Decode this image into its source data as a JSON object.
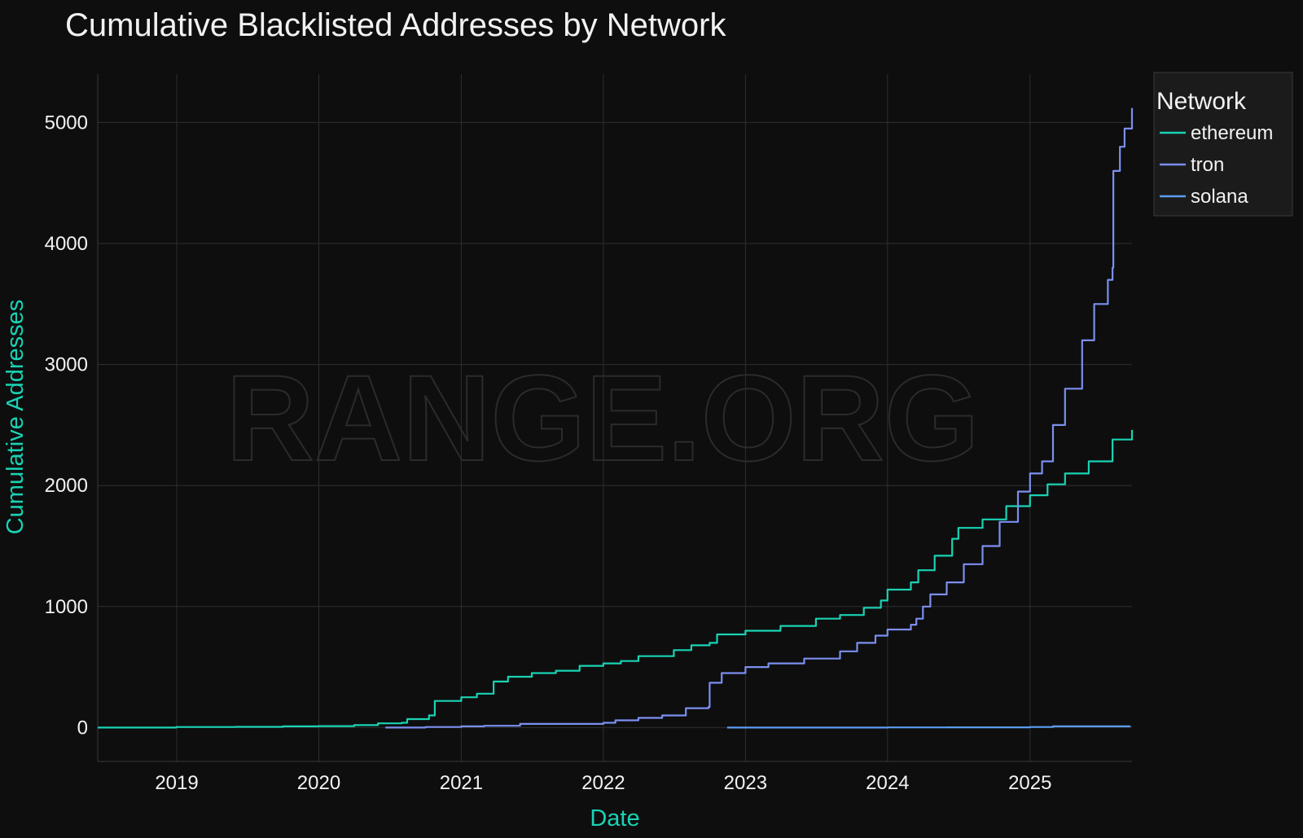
{
  "chart_data": {
    "type": "line",
    "title": "Cumulative Blacklisted Addresses by Network",
    "xlabel": "Date",
    "ylabel": "Cumulative Addresses",
    "watermark": "RANGE.ORG",
    "x_range": [
      "2018-06-12",
      "2025-09-20"
    ],
    "y_range": [
      -280,
      5400
    ],
    "x_ticks": [
      "2019",
      "2020",
      "2021",
      "2022",
      "2023",
      "2024",
      "2025"
    ],
    "y_ticks": [
      0,
      1000,
      2000,
      3000,
      4000,
      5000
    ],
    "grid": true,
    "legend": {
      "title": "Network",
      "placement": "top-right outside"
    },
    "colors": {
      "background": "#0e0e0e",
      "axis_title": "#19d3b4"
    },
    "series": [
      {
        "name": "ethereum",
        "color": "#19d3b4",
        "step": true,
        "points": [
          [
            "2018-06-12",
            0
          ],
          [
            "2018-12-01",
            0
          ],
          [
            "2018-12-31",
            5
          ],
          [
            "2019-06-01",
            6
          ],
          [
            "2019-10-01",
            10
          ],
          [
            "2020-01-01",
            12
          ],
          [
            "2020-04-01",
            20
          ],
          [
            "2020-06-01",
            35
          ],
          [
            "2020-08-01",
            40
          ],
          [
            "2020-08-15",
            70
          ],
          [
            "2020-10-10",
            100
          ],
          [
            "2020-10-25",
            220
          ],
          [
            "2021-01-01",
            250
          ],
          [
            "2021-02-10",
            280
          ],
          [
            "2021-03-25",
            380
          ],
          [
            "2021-05-01",
            420
          ],
          [
            "2021-07-01",
            450
          ],
          [
            "2021-09-01",
            470
          ],
          [
            "2021-11-01",
            510
          ],
          [
            "2022-01-01",
            530
          ],
          [
            "2022-02-15",
            550
          ],
          [
            "2022-04-01",
            590
          ],
          [
            "2022-07-01",
            640
          ],
          [
            "2022-08-15",
            680
          ],
          [
            "2022-10-01",
            700
          ],
          [
            "2022-10-20",
            770
          ],
          [
            "2023-01-01",
            800
          ],
          [
            "2023-04-01",
            840
          ],
          [
            "2023-07-01",
            900
          ],
          [
            "2023-09-01",
            930
          ],
          [
            "2023-11-01",
            990
          ],
          [
            "2023-12-15",
            1050
          ],
          [
            "2024-01-01",
            1140
          ],
          [
            "2024-03-01",
            1200
          ],
          [
            "2024-03-20",
            1300
          ],
          [
            "2024-05-01",
            1420
          ],
          [
            "2024-06-15",
            1560
          ],
          [
            "2024-07-01",
            1650
          ],
          [
            "2024-09-01",
            1720
          ],
          [
            "2024-11-01",
            1830
          ],
          [
            "2025-01-01",
            1920
          ],
          [
            "2025-02-15",
            2010
          ],
          [
            "2025-04-01",
            2100
          ],
          [
            "2025-06-01",
            2200
          ],
          [
            "2025-08-01",
            2380
          ],
          [
            "2025-09-20",
            2460
          ]
        ]
      },
      {
        "name": "tron",
        "color": "#7b8ff0",
        "step": true,
        "points": [
          [
            "2020-06-20",
            0
          ],
          [
            "2020-10-01",
            5
          ],
          [
            "2021-01-01",
            10
          ],
          [
            "2021-03-01",
            15
          ],
          [
            "2021-06-01",
            30
          ],
          [
            "2022-01-01",
            40
          ],
          [
            "2022-02-01",
            60
          ],
          [
            "2022-04-01",
            80
          ],
          [
            "2022-06-01",
            100
          ],
          [
            "2022-08-01",
            160
          ],
          [
            "2022-09-28",
            170
          ],
          [
            "2022-10-01",
            370
          ],
          [
            "2022-11-01",
            450
          ],
          [
            "2023-01-01",
            500
          ],
          [
            "2023-03-01",
            530
          ],
          [
            "2023-06-01",
            570
          ],
          [
            "2023-09-01",
            630
          ],
          [
            "2023-10-15",
            700
          ],
          [
            "2023-12-01",
            760
          ],
          [
            "2024-01-01",
            810
          ],
          [
            "2024-03-01",
            850
          ],
          [
            "2024-03-15",
            900
          ],
          [
            "2024-04-01",
            1000
          ],
          [
            "2024-04-20",
            1100
          ],
          [
            "2024-06-01",
            1200
          ],
          [
            "2024-07-15",
            1350
          ],
          [
            "2024-09-01",
            1500
          ],
          [
            "2024-10-15",
            1700
          ],
          [
            "2024-12-01",
            1950
          ],
          [
            "2025-01-01",
            2100
          ],
          [
            "2025-02-01",
            2200
          ],
          [
            "2025-03-01",
            2500
          ],
          [
            "2025-04-01",
            2800
          ],
          [
            "2025-05-15",
            3200
          ],
          [
            "2025-06-15",
            3500
          ],
          [
            "2025-07-20",
            3700
          ],
          [
            "2025-08-01",
            3800
          ],
          [
            "2025-08-03",
            4600
          ],
          [
            "2025-08-20",
            4800
          ],
          [
            "2025-09-01",
            4950
          ],
          [
            "2025-09-20",
            5120
          ]
        ]
      },
      {
        "name": "solana",
        "color": "#5a9cf0",
        "step": true,
        "points": [
          [
            "2022-11-15",
            0
          ],
          [
            "2023-06-01",
            0
          ],
          [
            "2024-01-01",
            1
          ],
          [
            "2024-06-01",
            2
          ],
          [
            "2025-01-01",
            5
          ],
          [
            "2025-03-01",
            10
          ],
          [
            "2025-09-15",
            15
          ]
        ]
      }
    ]
  }
}
